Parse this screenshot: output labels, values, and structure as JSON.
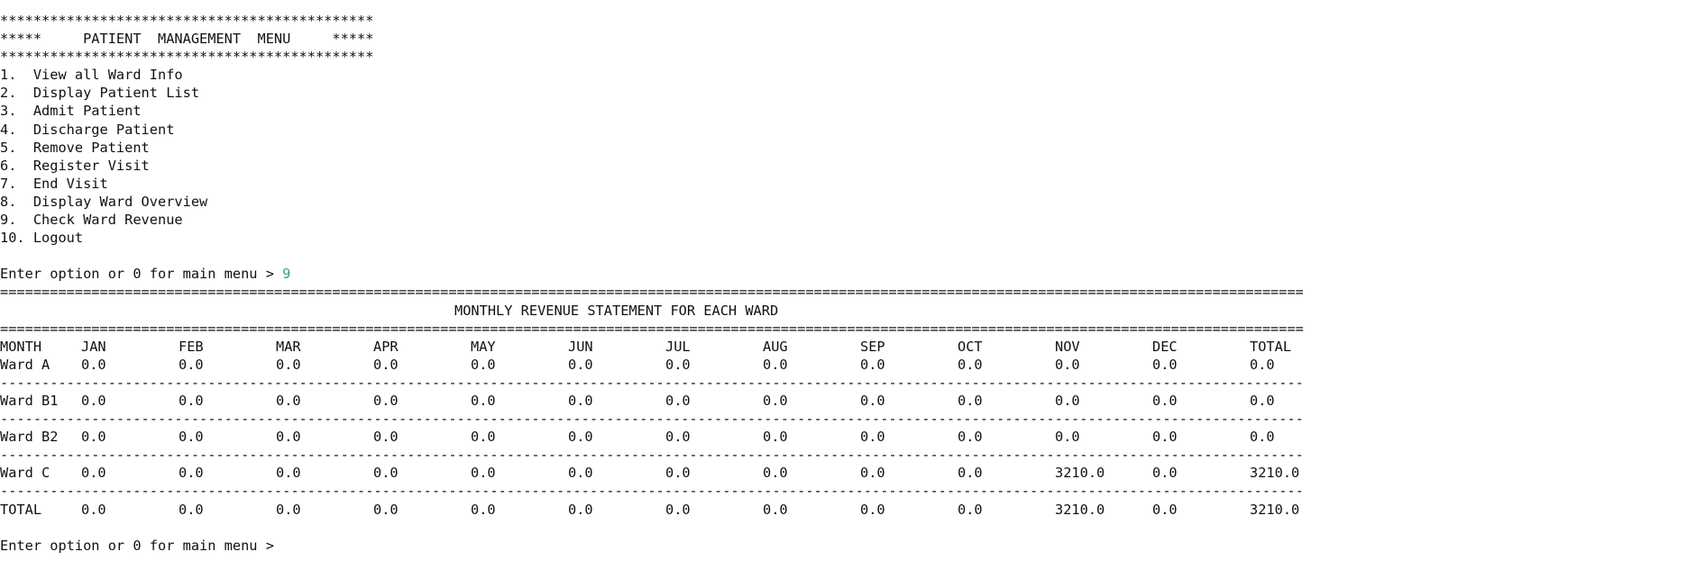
{
  "menu": {
    "border": "*********************************************",
    "title": "*****     PATIENT  MANAGEMENT  MENU     *****",
    "items": [
      "1.  View all Ward Info",
      "2.  Display Patient List",
      "3.  Admit Patient",
      "4.  Discharge Patient",
      "5.  Remove Patient",
      "6.  Register Visit",
      "7.  End Visit",
      "8.  Display Ward Overview",
      "9.  Check Ward Revenue",
      "10. Logout"
    ]
  },
  "prompt": {
    "text": "Enter option or 0 for main menu > ",
    "entered_value": "9",
    "final_text": "Enter option or 0 for main menu > "
  },
  "report": {
    "equals_line": "=====================================================================================================================================================================",
    "dash_line": "---------------------------------------------------------------------------------------------------------------------------------------------------------------------",
    "title": "MONTHLY REVENUE STATEMENT FOR EACH WARD",
    "header": [
      "MONTH",
      "JAN",
      "FEB",
      "MAR",
      "APR",
      "MAY",
      "JUN",
      "JUL",
      "AUG",
      "SEP",
      "OCT",
      "NOV",
      "DEC",
      "TOTAL"
    ],
    "rows": [
      [
        "Ward A",
        "0.0",
        "0.0",
        "0.0",
        "0.0",
        "0.0",
        "0.0",
        "0.0",
        "0.0",
        "0.0",
        "0.0",
        "0.0",
        "0.0",
        "0.0"
      ],
      [
        "Ward B1",
        "0.0",
        "0.0",
        "0.0",
        "0.0",
        "0.0",
        "0.0",
        "0.0",
        "0.0",
        "0.0",
        "0.0",
        "0.0",
        "0.0",
        "0.0"
      ],
      [
        "Ward B2",
        "0.0",
        "0.0",
        "0.0",
        "0.0",
        "0.0",
        "0.0",
        "0.0",
        "0.0",
        "0.0",
        "0.0",
        "0.0",
        "0.0",
        "0.0"
      ],
      [
        "Ward C",
        "0.0",
        "0.0",
        "0.0",
        "0.0",
        "0.0",
        "0.0",
        "0.0",
        "0.0",
        "0.0",
        "0.0",
        "3210.0",
        "0.0",
        "3210.0"
      ]
    ],
    "total_row": [
      "TOTAL",
      "0.0",
      "0.0",
      "0.0",
      "0.0",
      "0.0",
      "0.0",
      "0.0",
      "0.0",
      "0.0",
      "0.0",
      "3210.0",
      "0.0",
      "3210.0"
    ]
  },
  "colors": {
    "text": "#111111",
    "input_value": "#2aa876",
    "background": "#ffffff"
  }
}
